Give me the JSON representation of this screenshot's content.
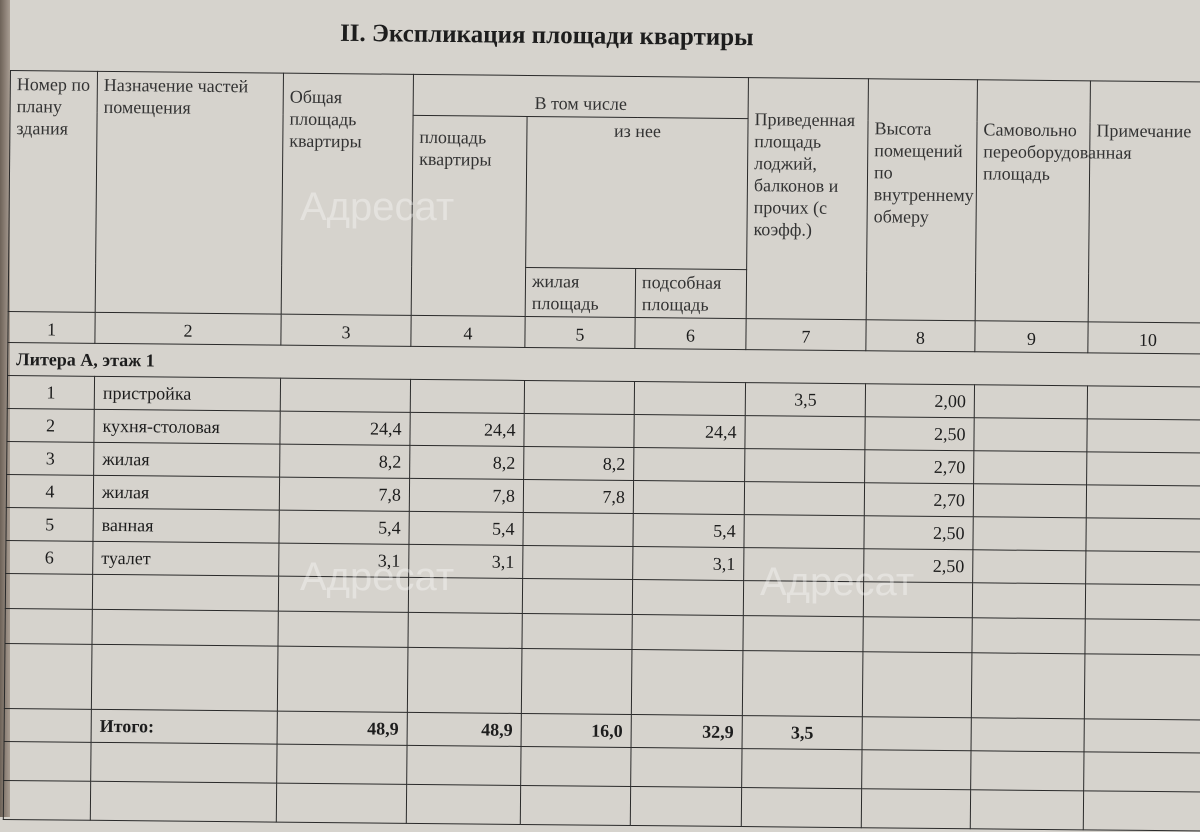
{
  "title": "II. Экспликация площади квартиры",
  "headers": {
    "c1": "Номер по плану здания",
    "c2": "Назначение частей помещения",
    "c3": "Общая площадь квартиры",
    "group": "В том числе",
    "c4": "площадь квартиры",
    "subgroup": "из нее",
    "c5": "жилая площадь",
    "c6": "подсобная площадь",
    "c7": "Приведенная площадь лоджий, балконов и прочих (с коэфф.)",
    "c8": "Высота помещений по внутреннему обмеру",
    "c9": "Самовольно переоборудованная площадь",
    "c10": "Примечание"
  },
  "column_numbers": [
    "1",
    "2",
    "3",
    "4",
    "5",
    "6",
    "7",
    "8",
    "9",
    "10"
  ],
  "section": "Литера А, этаж 1",
  "rows": [
    [
      "1",
      "пристройка",
      "",
      "",
      "",
      "",
      "3,5",
      "2,00",
      "",
      ""
    ],
    [
      "2",
      "кухня-столовая",
      "24,4",
      "24,4",
      "",
      "24,4",
      "",
      "2,50",
      "",
      ""
    ],
    [
      "3",
      "жилая",
      "8,2",
      "8,2",
      "8,2",
      "",
      "",
      "2,70",
      "",
      ""
    ],
    [
      "4",
      "жилая",
      "7,8",
      "7,8",
      "7,8",
      "",
      "",
      "2,70",
      "",
      ""
    ],
    [
      "5",
      "ванная",
      "5,4",
      "5,4",
      "",
      "5,4",
      "",
      "2,50",
      "",
      ""
    ],
    [
      "6",
      "туалет",
      "3,1",
      "3,1",
      "",
      "3,1",
      "",
      "2,50",
      "",
      ""
    ]
  ],
  "total": {
    "label": "Итого:",
    "c3": "48,9",
    "c4": "48,9",
    "c5": "16,0",
    "c6": "32,9",
    "c7": "3,5"
  },
  "watermark": "Адресат"
}
